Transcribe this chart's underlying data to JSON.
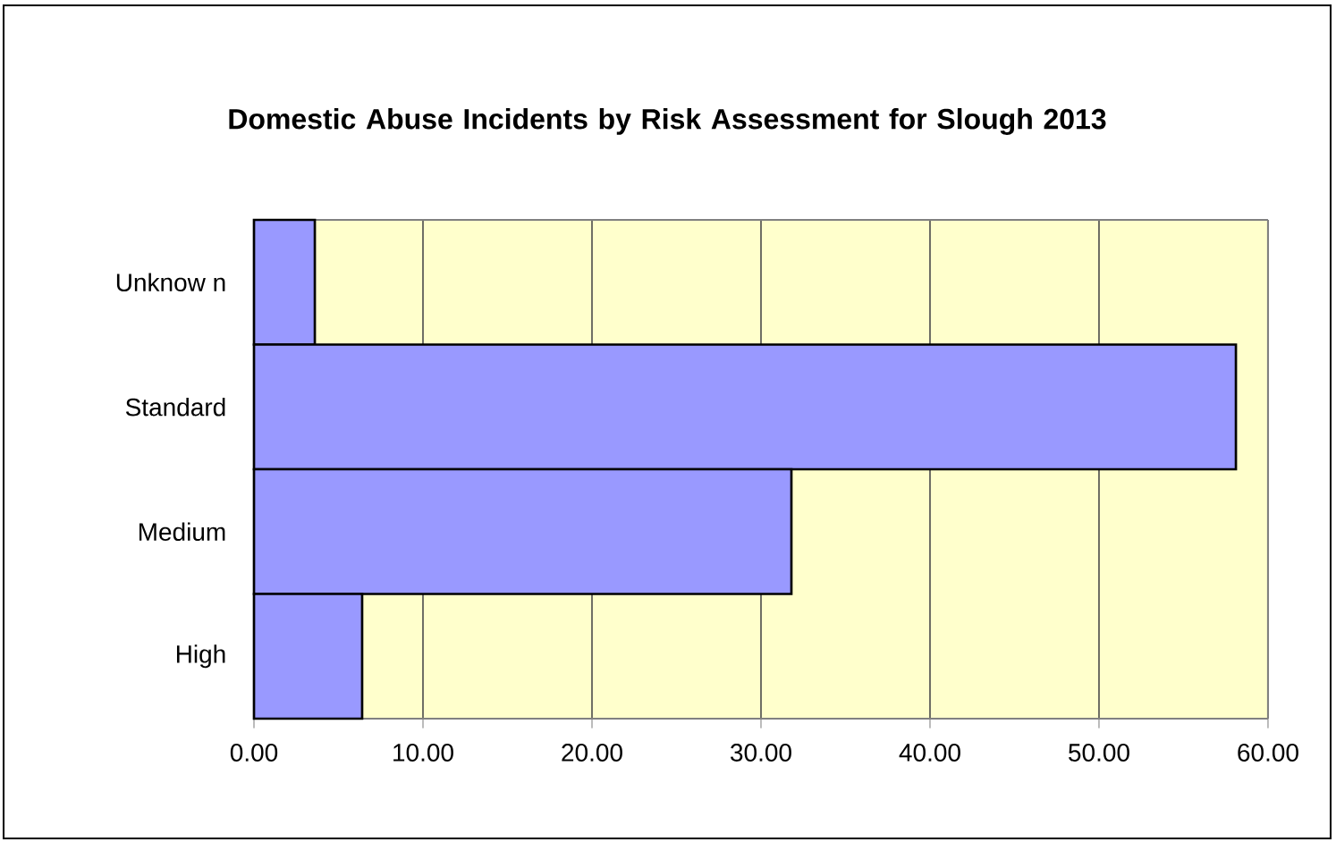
{
  "chart_data": {
    "type": "bar",
    "orientation": "horizontal",
    "title": "Domestic Abuse Incidents by Risk Assessment for Slough 2013",
    "categories": [
      "Unknow n",
      "Standard",
      "Medium",
      "High"
    ],
    "values": [
      3.6,
      58.1,
      31.8,
      6.4
    ],
    "color": "#9999ff",
    "xlim": [
      0,
      60
    ],
    "xticks": [
      {
        "value": 0,
        "label": "0.00"
      },
      {
        "value": 10,
        "label": "10.00"
      },
      {
        "value": 20,
        "label": "20.00"
      },
      {
        "value": 30,
        "label": "30.00"
      },
      {
        "value": 40,
        "label": "40.00"
      },
      {
        "value": 50,
        "label": "50.00"
      },
      {
        "value": 60,
        "label": "60.00"
      }
    ],
    "grid": "x"
  }
}
